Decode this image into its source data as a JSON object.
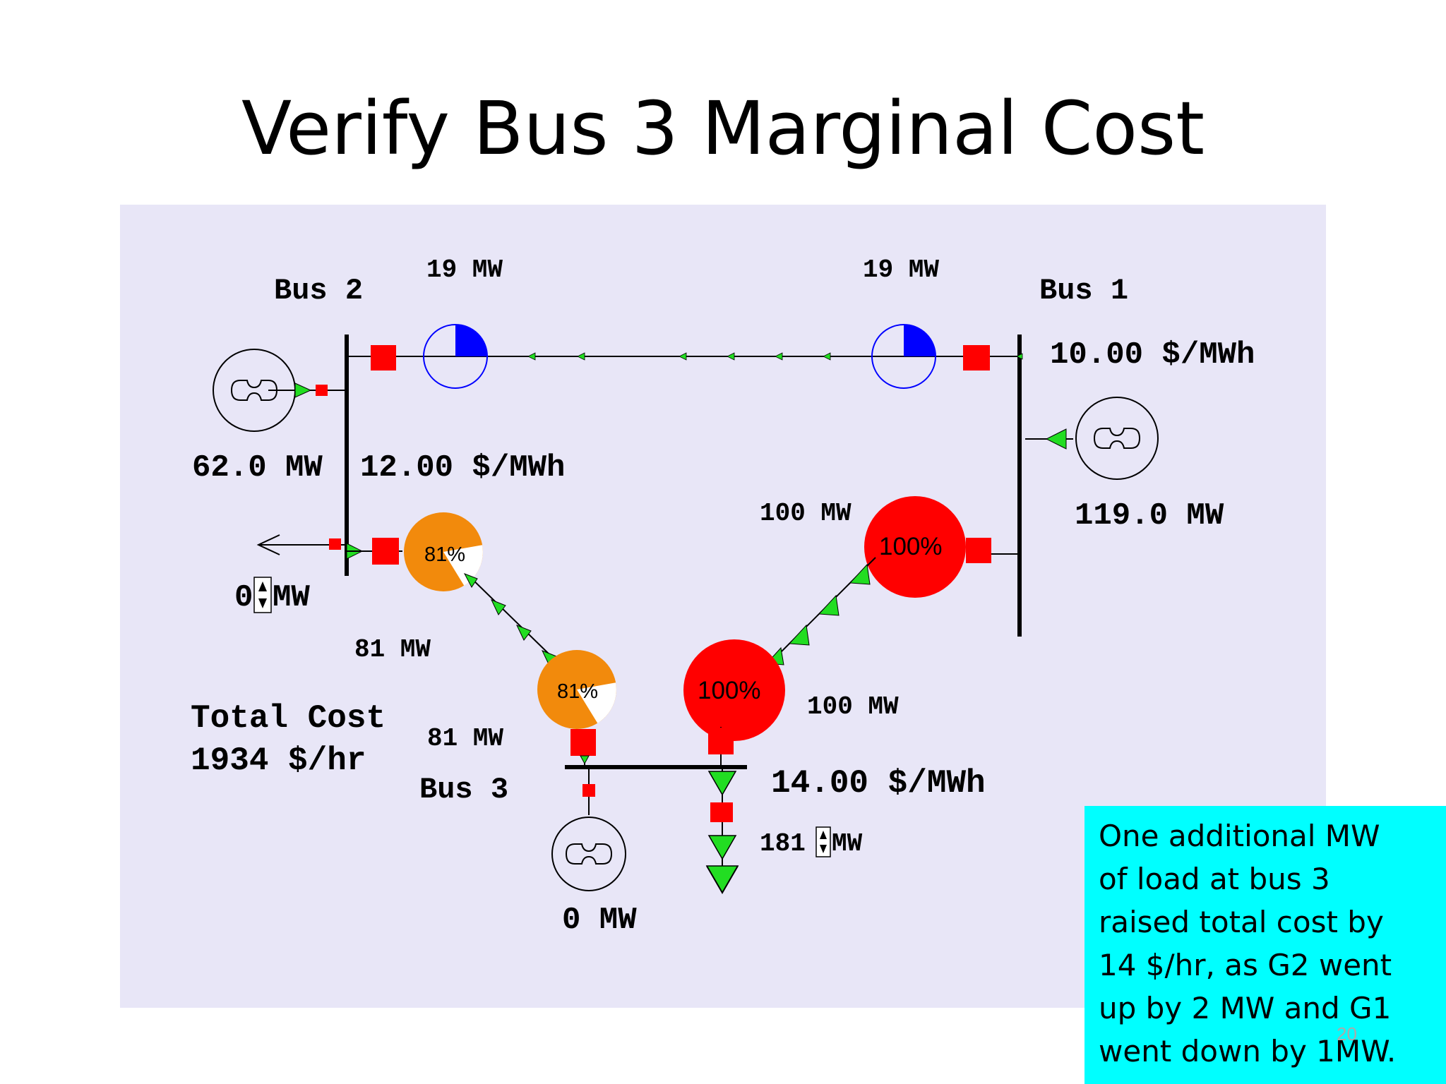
{
  "slide": {
    "title": "Verify Bus 3 Marginal Cost",
    "page_number": "20"
  },
  "diagram": {
    "bus2": {
      "label": "Bus 2",
      "price": "12.00 $/MWh",
      "gen_output": "62.0 MW",
      "load": "0",
      "load_unit": "MW"
    },
    "bus1": {
      "label": "Bus 1",
      "price": "10.00 $/MWh",
      "gen_output": "119.0 MW"
    },
    "bus3": {
      "label": "Bus 3",
      "price": "14.00 $/MWh",
      "gen_output": "0 MW",
      "load": "181",
      "load_unit": "MW"
    },
    "line_1_2": {
      "flow_left": "19 MW",
      "flow_right": "19 MW",
      "loading_fraction": 0.25
    },
    "line_2_3": {
      "flow_top": "81 MW",
      "flow_bottom": "81 MW",
      "loading_label": "81%",
      "loading_fraction": 0.81
    },
    "line_1_3": {
      "flow_top": "100 MW",
      "flow_bottom": "100 MW",
      "loading_label": "100%",
      "loading_fraction": 1.0
    },
    "total_cost_label": "Total Cost",
    "total_cost_value": "1934 $/hr",
    "colors": {
      "background": "#e8e6f7",
      "breaker": "#ff0000",
      "arrow": "#22dd22",
      "line_loading_low": "#0000ff",
      "line_loading_medium": "#f28a0c",
      "line_loading_full": "#ff0000"
    }
  },
  "note": {
    "lines": [
      "One additional MW",
      "of load at bus 3",
      "raised total cost by",
      "14 $/hr, as G2 went",
      "up by 2 MW and G1",
      "went down by 1MW."
    ]
  }
}
